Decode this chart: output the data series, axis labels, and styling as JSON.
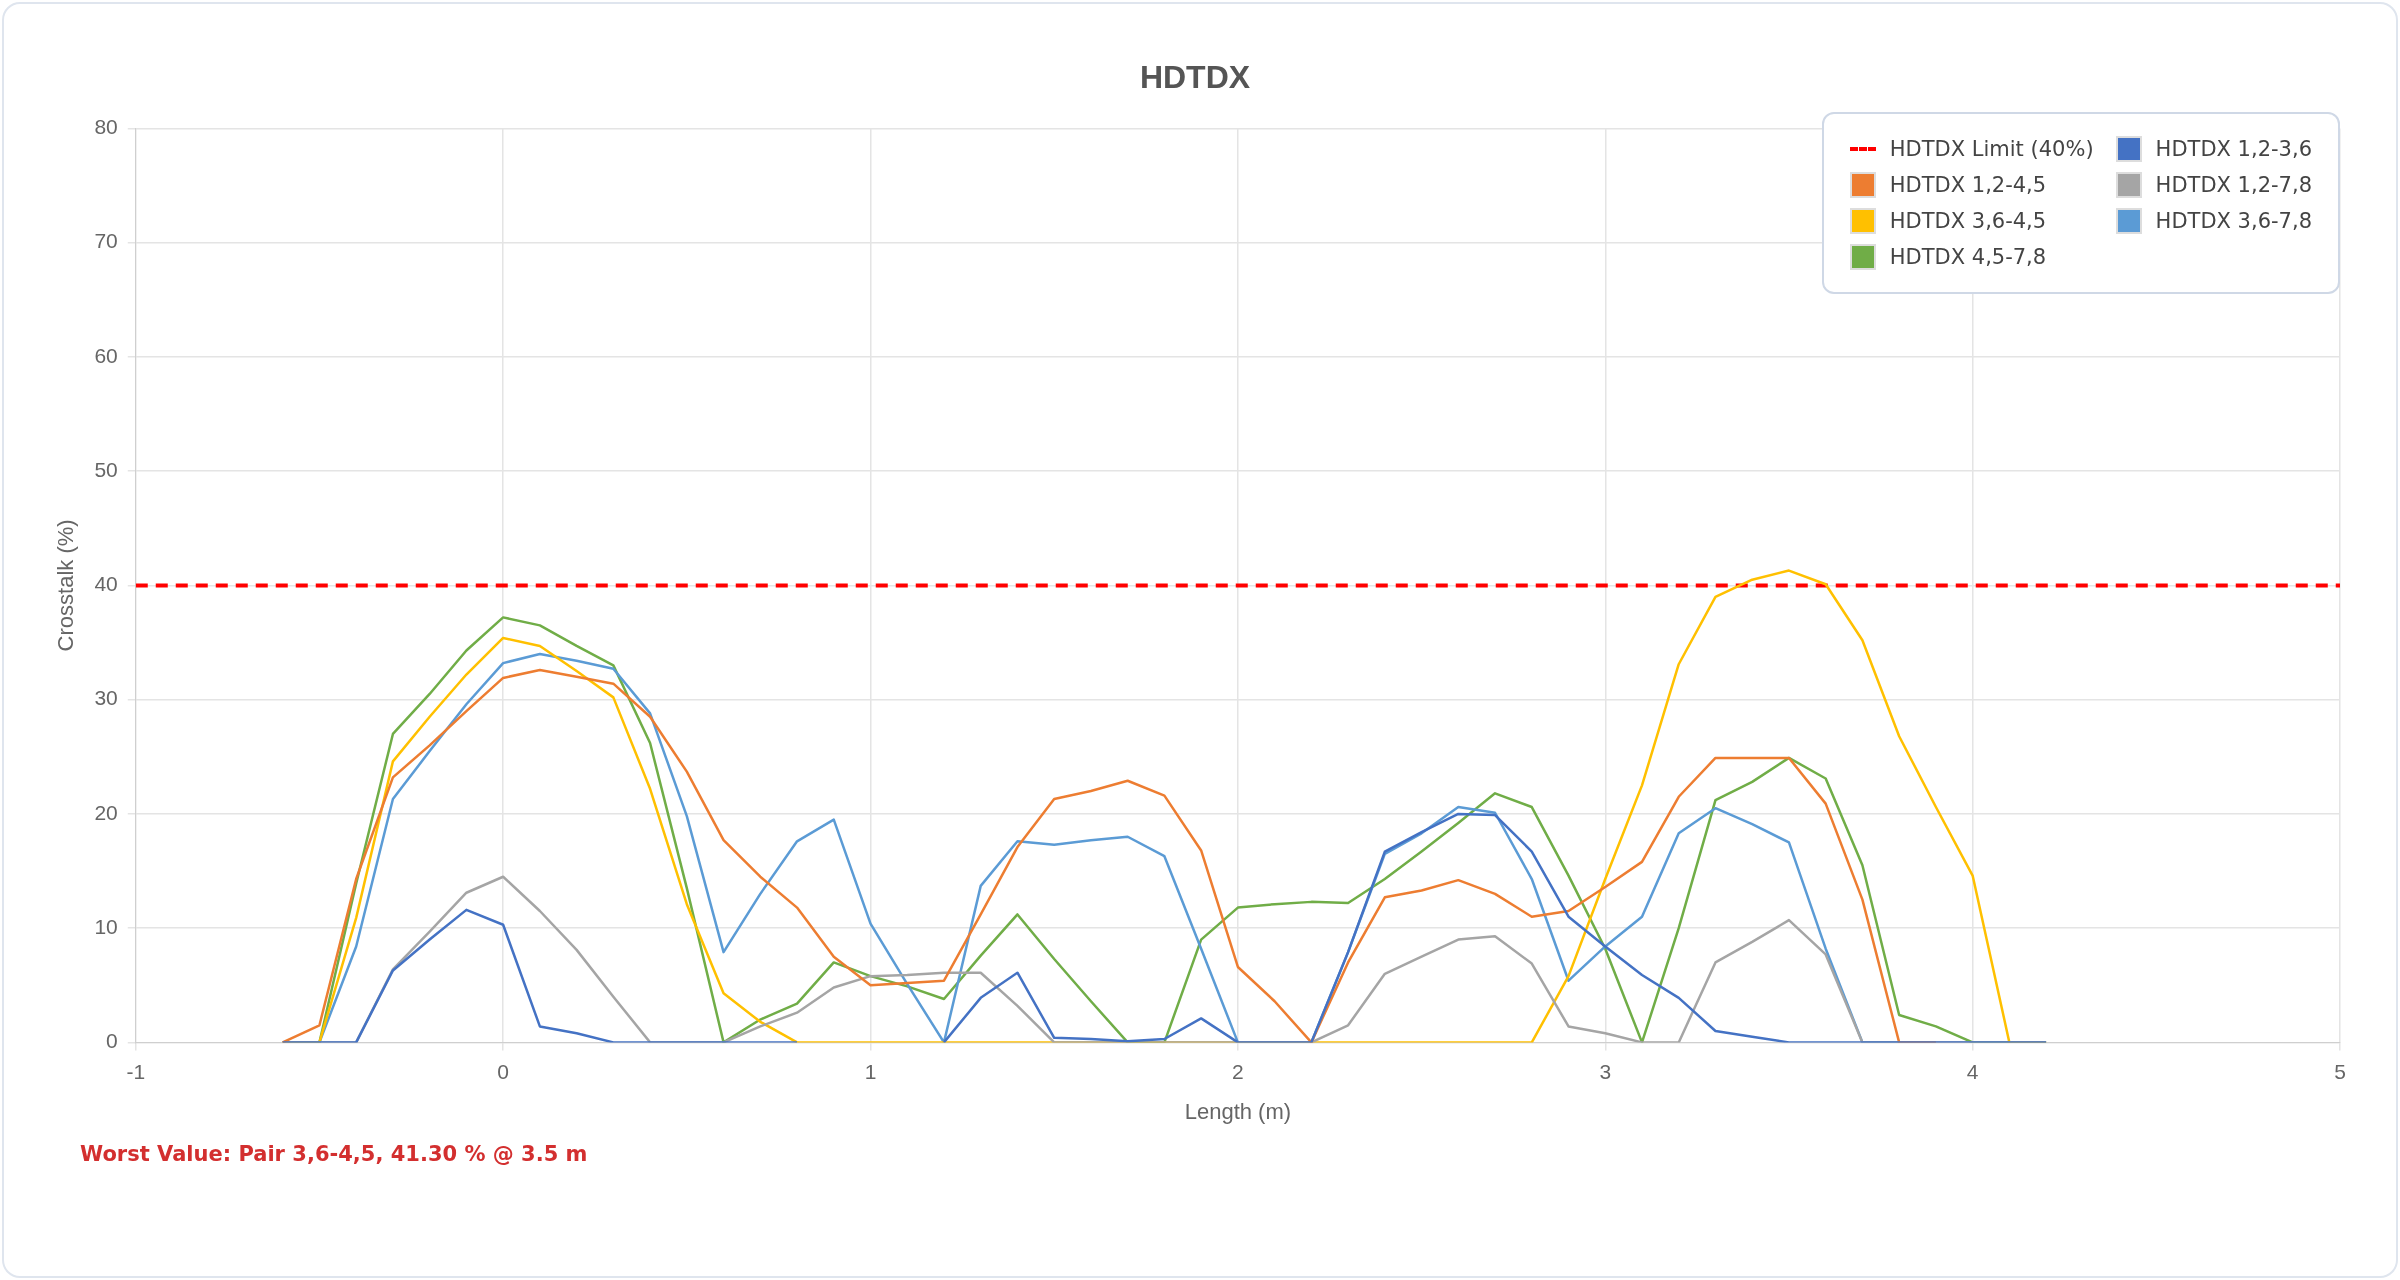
{
  "chart_data": {
    "type": "line",
    "title": "HDTDX",
    "xlabel": "Length (m)",
    "ylabel": "Crosstalk (%)",
    "x": [
      -0.6,
      -0.5,
      -0.4,
      -0.3,
      -0.2,
      -0.1,
      0,
      0.1,
      0.2,
      0.3,
      0.4,
      0.5,
      0.6,
      0.7,
      0.8,
      0.9,
      1.0,
      1.1,
      1.2,
      1.3,
      1.4,
      1.5,
      1.6,
      1.7,
      1.8,
      1.9,
      2.0,
      2.1,
      2.2,
      2.3,
      2.4,
      2.5,
      2.6,
      2.7,
      2.8,
      2.9,
      3.0,
      3.1,
      3.2,
      3.3,
      3.4,
      3.5,
      3.6,
      3.7,
      3.8,
      3.9,
      4.0,
      4.1,
      4.2
    ],
    "series": [
      {
        "name": "HDTDX 1,2-3,6",
        "color": "#4472c4",
        "values": [
          0,
          0,
          0,
          6.3,
          9.0,
          11.6,
          10.3,
          1.4,
          0.8,
          0,
          0,
          0,
          0,
          0,
          0,
          null,
          null,
          null,
          0,
          3.9,
          6.1,
          0.4,
          0.3,
          0.1,
          0.3,
          2.1,
          0,
          0,
          0,
          7.9,
          16.7,
          18.4,
          20.0,
          19.9,
          16.7,
          11.0,
          8.4,
          5.9,
          3.9,
          1.0,
          0.5,
          0,
          0,
          0,
          0,
          0,
          0,
          0,
          0
        ]
      },
      {
        "name": "HDTDX 1,2-4,5",
        "color": "#ed7d31",
        "values": [
          0,
          1.5,
          14.3,
          23.2,
          26.0,
          29.0,
          31.9,
          32.6,
          32.0,
          31.4,
          28.5,
          23.7,
          17.7,
          14.5,
          11.8,
          7.5,
          5.0,
          5.2,
          5.4,
          11.2,
          17.1,
          21.3,
          22.0,
          22.9,
          21.6,
          16.8,
          6.6,
          3.6,
          0,
          7.0,
          12.7,
          13.3,
          14.2,
          13.0,
          11.0,
          11.5,
          13.6,
          15.8,
          21.5,
          24.9,
          24.9,
          24.9,
          20.9,
          12.5,
          0,
          0,
          null,
          null,
          null
        ]
      },
      {
        "name": "HDTDX 1,2-7,8",
        "color": "#a5a5a5",
        "values": [
          0,
          0,
          0,
          6.4,
          9.7,
          13.1,
          14.5,
          11.5,
          8.1,
          4.0,
          0,
          0,
          0,
          1.4,
          2.6,
          4.8,
          5.8,
          5.9,
          6.1,
          6.1,
          3.2,
          0,
          0,
          0,
          0,
          0,
          0,
          0,
          0,
          1.5,
          6.0,
          7.5,
          9.0,
          9.3,
          6.9,
          1.4,
          0.8,
          0,
          0,
          7.0,
          8.8,
          10.7,
          7.7,
          0,
          0,
          0,
          0,
          0,
          0
        ]
      },
      {
        "name": "HDTDX 3,6-4,5",
        "color": "#ffc000",
        "values": [
          0,
          0,
          10.9,
          24.6,
          28.5,
          32.2,
          35.4,
          34.7,
          32.5,
          30.2,
          22.2,
          12.1,
          4.3,
          1.8,
          0,
          0,
          0,
          0,
          0,
          0,
          0,
          0,
          0,
          0,
          0,
          0,
          0,
          0,
          0,
          0,
          0,
          0,
          0,
          0,
          0,
          5.8,
          14.3,
          22.5,
          33.1,
          39.0,
          40.5,
          41.3,
          40.1,
          35.2,
          26.8,
          20.6,
          14.6,
          0,
          0
        ]
      },
      {
        "name": "HDTDX 3,6-7,8",
        "color": "#5b9bd5",
        "values": [
          0,
          0,
          8.4,
          21.3,
          25.5,
          29.6,
          33.2,
          34.0,
          33.4,
          32.7,
          28.8,
          19.8,
          7.9,
          13.0,
          17.6,
          19.5,
          10.4,
          5.1,
          0,
          13.7,
          17.6,
          17.3,
          17.7,
          18.0,
          16.3,
          8.2,
          0,
          0,
          0,
          7.9,
          16.5,
          18.3,
          20.6,
          20.1,
          14.3,
          5.4,
          8.4,
          11.0,
          18.3,
          20.5,
          19.1,
          17.5,
          8.2,
          0,
          0,
          0,
          null,
          null,
          null
        ]
      },
      {
        "name": "HDTDX 4,5-7,8",
        "color": "#70ad47",
        "values": [
          0,
          0,
          13.9,
          27.0,
          30.5,
          34.3,
          37.2,
          36.5,
          34.7,
          33.0,
          26.2,
          13.5,
          0,
          2.0,
          3.4,
          7.0,
          5.8,
          4.9,
          3.8,
          7.6,
          11.2,
          7.3,
          3.6,
          0,
          0,
          9.0,
          11.8,
          12.1,
          12.3,
          12.2,
          14.3,
          16.7,
          19.2,
          21.8,
          20.6,
          14.6,
          8.2,
          0,
          10.0,
          21.2,
          22.8,
          24.9,
          23.1,
          15.5,
          2.4,
          1.4,
          0,
          0,
          0
        ]
      }
    ],
    "ref_lines": [
      {
        "axis": "y",
        "value": 40,
        "label": "HDTDX Limit (40%)",
        "color": "#ff0000",
        "line_style": "dashed"
      }
    ],
    "xlim": [
      -1,
      5
    ],
    "xticks": [
      -1,
      0,
      1,
      2,
      3,
      4,
      5
    ],
    "ylim": [
      0,
      80
    ],
    "yticks": [
      0,
      10,
      20,
      30,
      40,
      50,
      60,
      70,
      80
    ],
    "grid": true,
    "legend": "top right",
    "marker": "none",
    "annotations": [
      "Worst Value: Pair 3,6-4,5, 41.30 % @ 3.5 m"
    ]
  }
}
